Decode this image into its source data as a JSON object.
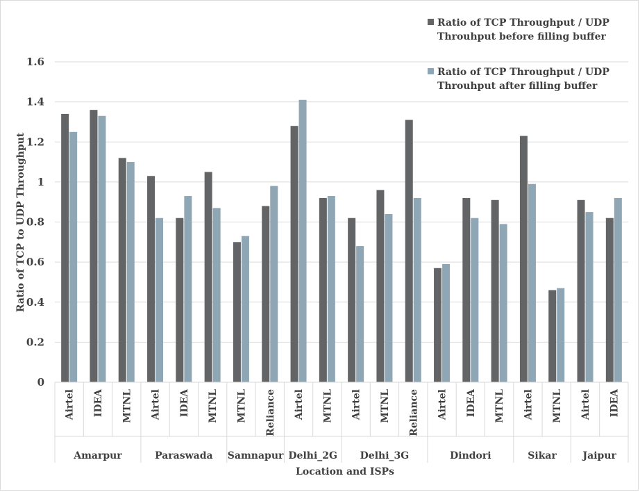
{
  "chart_data": {
    "type": "bar",
    "xlabel": "Location and ISPs",
    "ylabel": "Ratio of TCP to UDP Throughput",
    "ylim": [
      0,
      1.6
    ],
    "yticks": [
      "0",
      "0.2",
      "0.4",
      "0.6",
      "0.8",
      "1",
      "1.2",
      "1.4",
      "1.6"
    ],
    "grid": true,
    "legend_position": "top-right",
    "groups": [
      {
        "name": "Amarpur",
        "categories": [
          "Airtel",
          "IDEA",
          "MTNL"
        ]
      },
      {
        "name": "Paraswada",
        "categories": [
          "Airtel",
          "IDEA",
          "MTNL"
        ]
      },
      {
        "name": "Samnapur",
        "categories": [
          "MTNL",
          "Reliance"
        ]
      },
      {
        "name": "Delhi_2G",
        "categories": [
          "Airtel",
          "MTNL"
        ]
      },
      {
        "name": "Delhi_3G",
        "categories": [
          "Airtel",
          "MTNL",
          "Reliance"
        ]
      },
      {
        "name": "Dindori",
        "categories": [
          "Airtel",
          "IDEA",
          "MTNL"
        ]
      },
      {
        "name": "Sikar",
        "categories": [
          "Airtel",
          "MTNL"
        ]
      },
      {
        "name": "Jaipur",
        "categories": [
          "Airtel",
          "IDEA"
        ]
      }
    ],
    "series": [
      {
        "name": "Ratio of TCP Throughput / UDP Throuhput before filling buffer",
        "legend_lines": [
          "Ratio of TCP Throughput / UDP",
          "Throuhput before filling buffer"
        ],
        "color": "#636466",
        "values": [
          1.34,
          1.36,
          1.12,
          1.03,
          0.82,
          1.05,
          0.7,
          0.88,
          1.28,
          0.92,
          0.82,
          0.96,
          1.31,
          0.57,
          0.92,
          0.91,
          1.23,
          0.46,
          0.91,
          0.82
        ]
      },
      {
        "name": "Ratio of TCP Throughput / UDP Throuhput after filling buffer",
        "legend_lines": [
          "Ratio of TCP Throughput / UDP",
          "Throuhput after filling buffer"
        ],
        "color": "#8fa6b5",
        "values": [
          1.25,
          1.33,
          1.1,
          0.82,
          0.93,
          0.87,
          0.73,
          0.98,
          1.41,
          0.93,
          0.68,
          0.84,
          0.92,
          0.59,
          0.82,
          0.79,
          0.99,
          0.47,
          0.85,
          0.92
        ]
      }
    ]
  }
}
